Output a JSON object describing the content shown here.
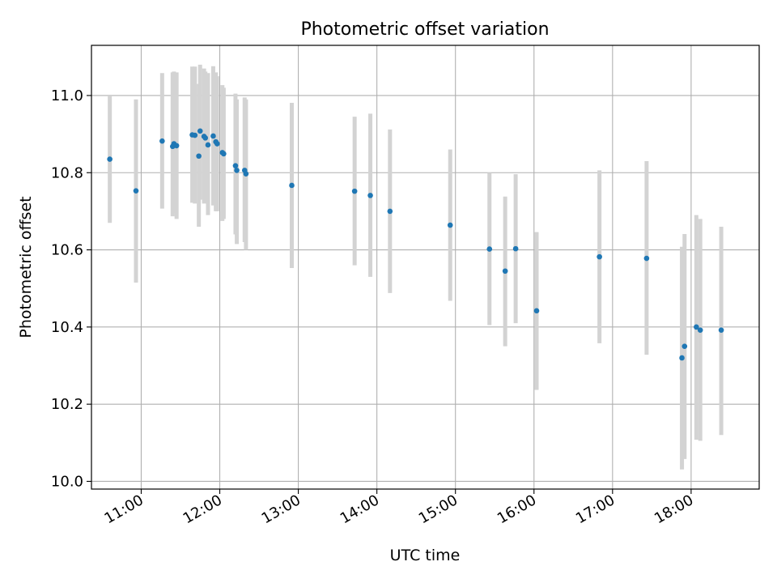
{
  "chart_data": {
    "type": "scatter",
    "title": "Photometric offset variation",
    "xlabel": "UTC time",
    "ylabel": "Photometric offset",
    "x_unit": "hours UTC",
    "xlim": [
      "10:22",
      "18:52"
    ],
    "ylim": [
      9.98,
      11.13
    ],
    "xticks": [
      "11:00",
      "12:00",
      "13:00",
      "14:00",
      "15:00",
      "16:00",
      "17:00",
      "18:00"
    ],
    "yticks": [
      "10.0",
      "10.2",
      "10.4",
      "10.6",
      "10.8",
      "11.0"
    ],
    "grid": true,
    "legend": "none",
    "colors": {
      "marker": "#1f77b4",
      "errorbar": "#d3d3d3",
      "grid": "#b0b0b0"
    },
    "points": [
      {
        "x": "10:36",
        "y": 10.835,
        "yerr_low": 10.67,
        "yerr_high": 11.0
      },
      {
        "x": "10:56",
        "y": 10.753,
        "yerr_low": 10.515,
        "yerr_high": 10.99
      },
      {
        "x": "11:16",
        "y": 10.882,
        "yerr_low": 10.707,
        "yerr_high": 11.058
      },
      {
        "x": "11:24",
        "y": 10.868,
        "yerr_low": 10.687,
        "yerr_high": 11.06
      },
      {
        "x": "11:25",
        "y": 10.875,
        "yerr_low": 10.695,
        "yerr_high": 11.062
      },
      {
        "x": "11:27",
        "y": 10.87,
        "yerr_low": 10.68,
        "yerr_high": 11.06
      },
      {
        "x": "11:39",
        "y": 10.898,
        "yerr_low": 10.722,
        "yerr_high": 11.075
      },
      {
        "x": "11:41",
        "y": 10.897,
        "yerr_low": 10.72,
        "yerr_high": 11.075
      },
      {
        "x": "11:44",
        "y": 10.843,
        "yerr_low": 10.66,
        "yerr_high": 11.03
      },
      {
        "x": "11:45",
        "y": 10.908,
        "yerr_low": 10.73,
        "yerr_high": 11.08
      },
      {
        "x": "11:48",
        "y": 10.894,
        "yerr_low": 10.72,
        "yerr_high": 11.07
      },
      {
        "x": "11:49",
        "y": 10.89,
        "yerr_low": 10.725,
        "yerr_high": 11.062
      },
      {
        "x": "11:51",
        "y": 10.872,
        "yerr_low": 10.69,
        "yerr_high": 11.058
      },
      {
        "x": "11:55",
        "y": 10.895,
        "yerr_low": 10.715,
        "yerr_high": 11.076
      },
      {
        "x": "11:57",
        "y": 10.88,
        "yerr_low": 10.7,
        "yerr_high": 11.06
      },
      {
        "x": "11:58",
        "y": 10.875,
        "yerr_low": 10.7,
        "yerr_high": 11.05
      },
      {
        "x": "12:02",
        "y": 10.852,
        "yerr_low": 10.675,
        "yerr_high": 11.027
      },
      {
        "x": "12:03",
        "y": 10.849,
        "yerr_low": 10.68,
        "yerr_high": 11.02
      },
      {
        "x": "12:12",
        "y": 10.818,
        "yerr_low": 10.64,
        "yerr_high": 11.005
      },
      {
        "x": "12:13",
        "y": 10.806,
        "yerr_low": 10.615,
        "yerr_high": 10.99
      },
      {
        "x": "12:19",
        "y": 10.806,
        "yerr_low": 10.62,
        "yerr_high": 10.995
      },
      {
        "x": "12:20",
        "y": 10.797,
        "yerr_low": 10.6,
        "yerr_high": 10.99
      },
      {
        "x": "12:55",
        "y": 10.767,
        "yerr_low": 10.553,
        "yerr_high": 10.981
      },
      {
        "x": "13:43",
        "y": 10.752,
        "yerr_low": 10.56,
        "yerr_high": 10.945
      },
      {
        "x": "13:55",
        "y": 10.741,
        "yerr_low": 10.53,
        "yerr_high": 10.953
      },
      {
        "x": "14:10",
        "y": 10.7,
        "yerr_low": 10.488,
        "yerr_high": 10.912
      },
      {
        "x": "14:56",
        "y": 10.664,
        "yerr_low": 10.468,
        "yerr_high": 10.86
      },
      {
        "x": "15:26",
        "y": 10.602,
        "yerr_low": 10.405,
        "yerr_high": 10.8
      },
      {
        "x": "15:38",
        "y": 10.545,
        "yerr_low": 10.35,
        "yerr_high": 10.738
      },
      {
        "x": "15:46",
        "y": 10.603,
        "yerr_low": 10.41,
        "yerr_high": 10.796
      },
      {
        "x": "16:02",
        "y": 10.442,
        "yerr_low": 10.237,
        "yerr_high": 10.646
      },
      {
        "x": "16:50",
        "y": 10.582,
        "yerr_low": 10.358,
        "yerr_high": 10.806
      },
      {
        "x": "17:26",
        "y": 10.578,
        "yerr_low": 10.328,
        "yerr_high": 10.83
      },
      {
        "x": "17:53",
        "y": 10.32,
        "yerr_low": 10.031,
        "yerr_high": 10.608
      },
      {
        "x": "17:55",
        "y": 10.35,
        "yerr_low": 10.058,
        "yerr_high": 10.641
      },
      {
        "x": "18:04",
        "y": 10.4,
        "yerr_low": 10.108,
        "yerr_high": 10.69
      },
      {
        "x": "18:07",
        "y": 10.392,
        "yerr_low": 10.105,
        "yerr_high": 10.68
      },
      {
        "x": "18:23",
        "y": 10.392,
        "yerr_low": 10.12,
        "yerr_high": 10.66
      }
    ]
  }
}
